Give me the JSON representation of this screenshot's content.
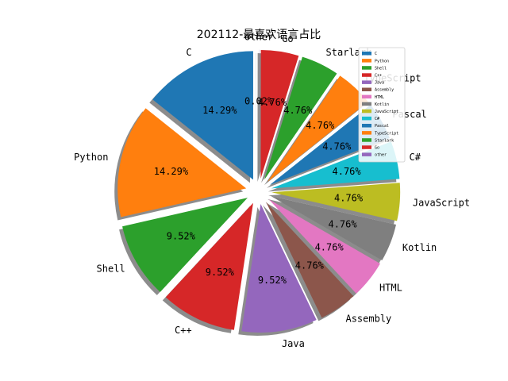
{
  "chart_data": {
    "type": "pie",
    "title": "202112-最喜欢语言占比",
    "categories": [
      "C",
      "Python",
      "Shell",
      "C++",
      "Java",
      "Assembly",
      "HTML",
      "Kotlin",
      "JavaScript",
      "C#",
      "Pascal",
      "TypeScript",
      "Starlark",
      "Go",
      "other"
    ],
    "values": [
      14.29,
      14.29,
      9.52,
      9.52,
      9.52,
      4.76,
      4.76,
      4.76,
      4.76,
      4.76,
      4.76,
      4.76,
      4.76,
      4.76,
      0.02
    ],
    "value_labels": [
      "14.29%",
      "14.29%",
      "9.52%",
      "9.52%",
      "9.52%",
      "4.76%",
      "4.76%",
      "4.76%",
      "4.76%",
      "4.76%",
      "4.76%",
      "4.76%",
      "4.76%",
      "4.76%",
      "0.02%"
    ],
    "colors": [
      "#1f77b4",
      "#ff7f0e",
      "#2ca02c",
      "#d62728",
      "#9467bd",
      "#8c564b",
      "#e377c2",
      "#7f7f7f",
      "#bcbd22",
      "#17becf",
      "#1f77b4",
      "#ff7f0e",
      "#2ca02c",
      "#d62728",
      "#9467bd"
    ],
    "start_angle": 90,
    "counterclock": true,
    "exploded": true,
    "shadow": true,
    "legend": {
      "placement": "upper-right",
      "entries": [
        "C",
        "Python",
        "Shell",
        "C++",
        "Java",
        "Assembly",
        "HTML",
        "Kotlin",
        "JavaScript",
        "C#",
        "Pascal",
        "TypeScript",
        "Starlark",
        "Go",
        "other"
      ]
    }
  }
}
